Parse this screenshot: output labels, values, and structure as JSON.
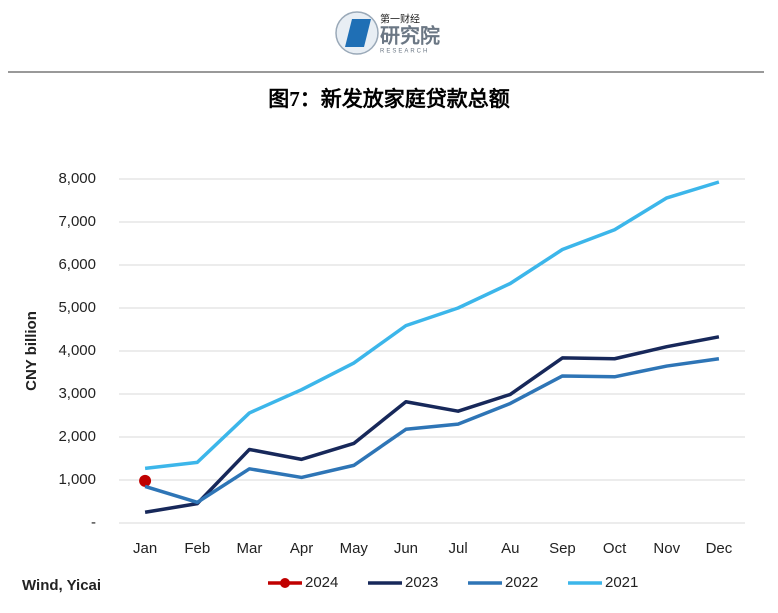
{
  "header": {
    "brand_small": "第一财经",
    "brand": "研究院",
    "brand_en": "RESEARCH"
  },
  "chart_data": {
    "type": "line",
    "title": "图7：新发放家庭贷款总额",
    "ylabel": "CNY billion",
    "source": "Wind, Yicai",
    "categories": [
      "Jan",
      "Feb",
      "Mar",
      "Apr",
      "May",
      "Jun",
      "Jul",
      "Au",
      "Sep",
      "Oct",
      "Nov",
      "Dec"
    ],
    "series": [
      {
        "name": "2024",
        "color": "#c00000",
        "values": [
          980,
          null,
          null,
          null,
          null,
          null,
          null,
          null,
          null,
          null,
          null,
          null
        ]
      },
      {
        "name": "2023",
        "color": "#17285a",
        "values": [
          250,
          450,
          1710,
          1480,
          1850,
          2820,
          2600,
          2990,
          3840,
          3820,
          4100,
          4330
        ]
      },
      {
        "name": "2022",
        "color": "#2e75b6",
        "values": [
          850,
          480,
          1260,
          1060,
          1340,
          2180,
          2300,
          2780,
          3420,
          3400,
          3650,
          3820
        ]
      },
      {
        "name": "2021",
        "color": "#3cb6ea",
        "values": [
          1270,
          1410,
          2560,
          3100,
          3720,
          4590,
          5000,
          5570,
          6360,
          6820,
          7560,
          7930
        ]
      }
    ],
    "ylim": [
      0,
      8000
    ],
    "yticks": [
      {
        "value": 0,
        "label": "-"
      },
      {
        "value": 1000,
        "label": "1,000"
      },
      {
        "value": 2000,
        "label": "2,000"
      },
      {
        "value": 3000,
        "label": "3,000"
      },
      {
        "value": 4000,
        "label": "4,000"
      },
      {
        "value": 5000,
        "label": "5,000"
      },
      {
        "value": 6000,
        "label": "6,000"
      },
      {
        "value": 7000,
        "label": "7,000"
      },
      {
        "value": 8000,
        "label": "8,000"
      }
    ],
    "grid": true,
    "legend": "bottom"
  }
}
